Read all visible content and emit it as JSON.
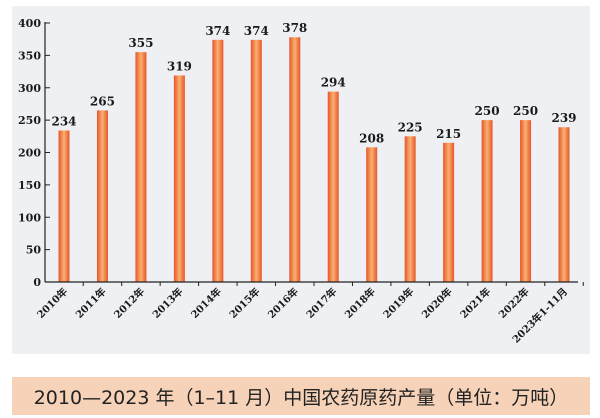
{
  "caption": "2010—2023 年（1–11 月）中国农药原药产量（单位：万吨）",
  "colors": {
    "panel": "#eef0f4",
    "caption_bg": "#f6d2b8",
    "bar_dark": "#e8552a",
    "bar_light": "#f9b070",
    "axis": "#222222"
  },
  "chart_data": {
    "type": "bar",
    "categories": [
      "2010年",
      "2011年",
      "2012年",
      "2013年",
      "2014年",
      "2015年",
      "2016年",
      "2017年",
      "2018年",
      "2019年",
      "2020年",
      "2021年",
      "2022年",
      "2023年1-11月"
    ],
    "values": [
      234,
      265,
      355,
      319,
      374,
      374,
      378,
      294,
      208,
      225,
      215,
      250,
      250,
      239
    ],
    "value_labels": [
      "234",
      "265",
      "355",
      "319",
      "374",
      "374",
      "378",
      "294",
      "208",
      "225",
      "215",
      "250",
      "250",
      "239"
    ],
    "yticks": [
      0,
      50,
      100,
      150,
      200,
      250,
      300,
      350,
      400
    ],
    "ylim": [
      0,
      400
    ],
    "grid": false,
    "legend": "none"
  }
}
